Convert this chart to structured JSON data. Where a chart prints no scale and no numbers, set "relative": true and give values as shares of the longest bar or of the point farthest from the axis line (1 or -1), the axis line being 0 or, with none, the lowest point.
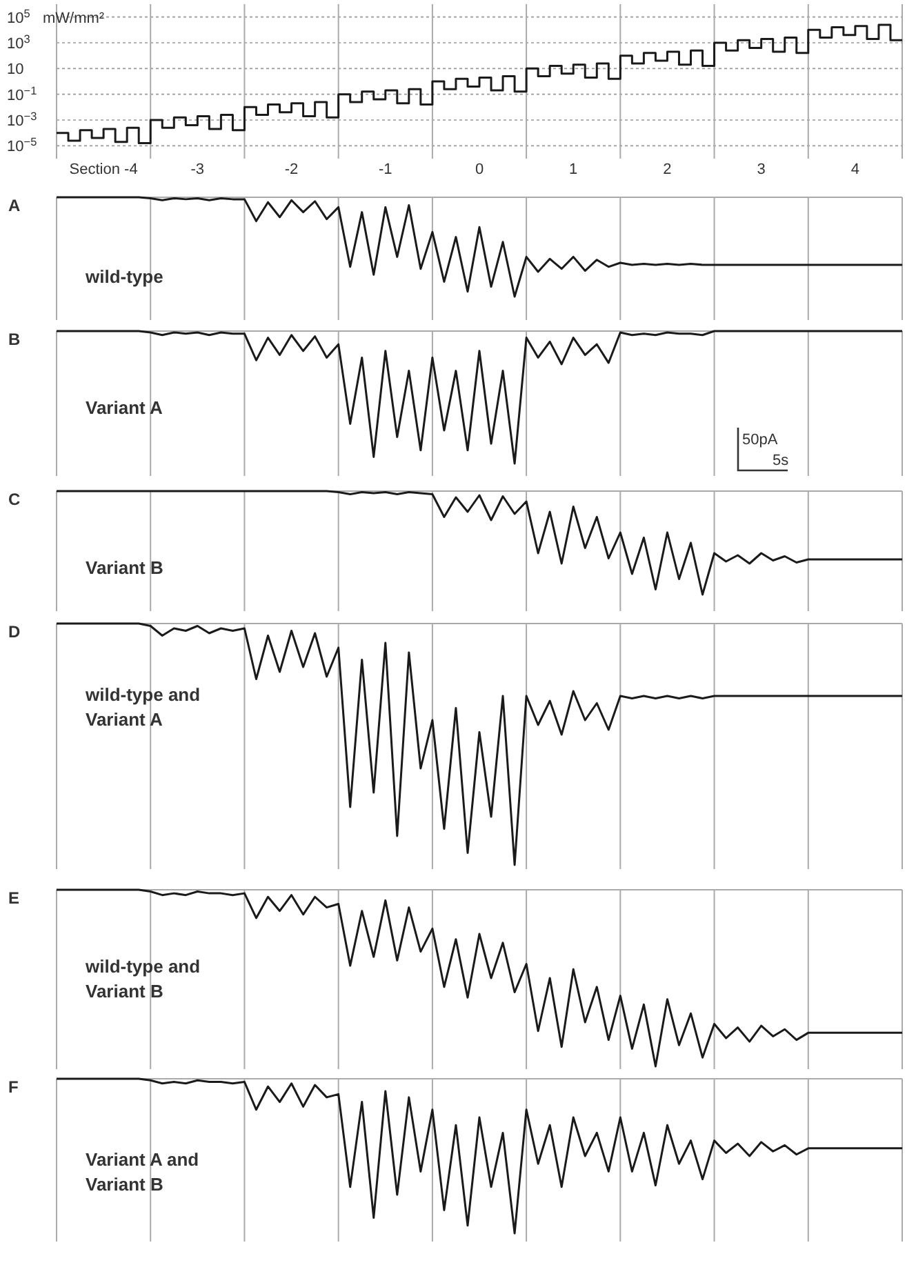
{
  "chart_data": [
    {
      "type": "step",
      "ylabel": "mW/mm²",
      "log": true,
      "grid": true,
      "xlim": [
        -4.5,
        4.5
      ],
      "ylim": [
        1e-06,
        1000000.0
      ],
      "yticks": [
        {
          "value": 1e-05,
          "label": "10$^{−5}$"
        },
        {
          "value": 0.001,
          "label": "10$^{−3}$"
        },
        {
          "value": 0.1,
          "label": "10$^{−1}$"
        },
        10,
        {
          "value": 1000,
          "label": "10$^{3}$"
        },
        {
          "value": 100000,
          "label": "10$^{5}$"
        }
      ],
      "xticks": [
        {
          "value": -4.5,
          "label": null
        },
        {
          "value": -4,
          "label": "Section -4"
        },
        {
          "value": -3.5,
          "label": null
        },
        -3,
        {
          "value": -2.5,
          "label": null
        },
        -2,
        {
          "value": -1.5,
          "label": null
        },
        -1,
        {
          "value": -0.5,
          "label": null
        },
        0,
        {
          "value": 0.5,
          "label": null
        },
        1,
        {
          "value": 1.5,
          "label": null
        },
        2,
        {
          "value": 2.5,
          "label": null
        },
        3,
        {
          "value": 3.5,
          "label": null
        },
        4,
        {
          "value": 4.5,
          "label": null
        }
      ],
      "x": [
        -4.5,
        -4.375,
        -4.25,
        -4.125,
        -4,
        -3.875,
        -3.75,
        -3.625,
        -3.5,
        -3.375,
        -3.25,
        -3.125,
        -3,
        -2.875,
        -2.75,
        -2.625,
        -2.5,
        -2.375,
        -2.25,
        -2.125,
        -2,
        -1.875,
        -1.75,
        -1.625,
        -1.5,
        -1.375,
        -1.25,
        -1.125,
        -1,
        -0.875,
        -0.75,
        -0.625,
        -0.5,
        -0.375,
        -0.25,
        -0.125,
        0,
        0.125,
        0.25,
        0.375,
        0.5,
        0.625,
        0.75,
        0.875,
        1,
        1.125,
        1.25,
        1.375,
        1.5,
        1.625,
        1.75,
        1.875,
        2,
        2.125,
        2.25,
        2.375,
        2.5,
        2.625,
        2.75,
        2.875,
        3,
        3.125,
        3.25,
        3.375,
        3.5,
        3.625,
        3.75,
        3.875,
        4,
        4.125,
        4.25,
        4.375,
        4.5
      ],
      "series": [
        {
          "color": "#1a1a1a",
          "values": [
            0.0001,
            2.5e-05,
            0.00016,
            4e-05,
            0.0002,
            2e-05,
            0.00025,
            1.6e-05,
            0.001,
            0.00025,
            0.0016,
            0.0004,
            0.002,
            0.0002,
            0.0025,
            0.00016,
            0.01,
            0.0025,
            0.016,
            0.004,
            0.02,
            0.002,
            0.025,
            0.0016,
            0.1,
            0.025,
            0.16,
            0.04,
            0.2,
            0.02,
            0.25,
            0.016,
            1,
            0.25,
            1.6,
            0.4,
            2,
            0.2,
            2.5,
            0.16,
            10,
            2.5,
            16,
            4,
            20,
            2,
            25,
            1.6,
            100,
            25,
            160,
            40,
            200,
            20,
            250,
            16,
            1000,
            250,
            1600,
            400,
            2000,
            200,
            2500,
            160,
            10000,
            2500,
            16000,
            4000,
            20000,
            2000,
            25000,
            1600,
            1600
          ]
        }
      ]
    },
    {
      "type": "line",
      "title": "A",
      "subtitle": "wild-type",
      "relative": true,
      "grid": "x",
      "categories": [
        null,
        null,
        null,
        null,
        null,
        null,
        null,
        null,
        null,
        null,
        null,
        null,
        null,
        null,
        null,
        null,
        null,
        null,
        null,
        null,
        null,
        null,
        null,
        null,
        null,
        null,
        null,
        null,
        null,
        null,
        null,
        null,
        null,
        null,
        null,
        null,
        null,
        null,
        null,
        null,
        null,
        null,
        null,
        null,
        null,
        null,
        null,
        null,
        null,
        null,
        null,
        null,
        null,
        null,
        null,
        null,
        null,
        null,
        null,
        null,
        null,
        null,
        null,
        null,
        null,
        null,
        null,
        null,
        null,
        null,
        null,
        null,
        null
      ],
      "series": [
        {
          "color": "#1a1a1a",
          "values": [
            0,
            0,
            0,
            0,
            0,
            0,
            0,
            0,
            -0.01,
            -0.03,
            -0.01,
            -0.02,
            -0.01,
            -0.03,
            -0.01,
            -0.02,
            -0.02,
            -0.24,
            -0.05,
            -0.2,
            -0.03,
            -0.15,
            -0.04,
            -0.22,
            -0.1,
            -0.7,
            -0.15,
            -0.78,
            -0.1,
            -0.6,
            -0.08,
            -0.72,
            -0.35,
            -0.85,
            -0.4,
            -0.95,
            -0.3,
            -0.9,
            -0.45,
            -1,
            -0.6,
            -0.75,
            -0.62,
            -0.72,
            -0.6,
            -0.74,
            -0.63,
            -0.7,
            -0.66,
            -0.68,
            -0.67,
            -0.68,
            -0.67,
            -0.68,
            -0.67,
            -0.68,
            -0.68,
            -0.68,
            -0.68,
            -0.68,
            -0.68,
            -0.68,
            -0.68,
            -0.68,
            -0.68,
            -0.68,
            -0.68,
            -0.68,
            -0.68,
            -0.68,
            -0.68,
            -0.68,
            -0.68
          ]
        }
      ]
    },
    {
      "type": "line",
      "title": "B",
      "subtitle": "Variant A",
      "annotations": [
        "50pA",
        "5s"
      ],
      "relative": true,
      "grid": "x",
      "categories": [
        null,
        null,
        null,
        null,
        null,
        null,
        null,
        null,
        null,
        null,
        null,
        null,
        null,
        null,
        null,
        null,
        null,
        null,
        null,
        null,
        null,
        null,
        null,
        null,
        null,
        null,
        null,
        null,
        null,
        null,
        null,
        null,
        null,
        null,
        null,
        null,
        null,
        null,
        null,
        null,
        null,
        null,
        null,
        null,
        null,
        null,
        null,
        null,
        null,
        null,
        null,
        null,
        null,
        null,
        null,
        null,
        null,
        null,
        null,
        null,
        null,
        null,
        null,
        null,
        null,
        null,
        null,
        null,
        null,
        null,
        null,
        null,
        null
      ],
      "series": [
        {
          "color": "#1a1a1a",
          "values": [
            0,
            0,
            0,
            0,
            0,
            0,
            0,
            0,
            -0.01,
            -0.03,
            -0.01,
            -0.02,
            -0.01,
            -0.03,
            -0.01,
            -0.02,
            -0.02,
            -0.22,
            -0.05,
            -0.18,
            -0.03,
            -0.15,
            -0.04,
            -0.2,
            -0.1,
            -0.7,
            -0.2,
            -0.95,
            -0.15,
            -0.8,
            -0.3,
            -0.9,
            -0.2,
            -0.75,
            -0.3,
            -0.9,
            -0.15,
            -0.85,
            -0.3,
            -1,
            -0.05,
            -0.2,
            -0.08,
            -0.25,
            -0.05,
            -0.18,
            -0.1,
            -0.24,
            -0.01,
            -0.03,
            -0.02,
            -0.03,
            -0.01,
            -0.02,
            -0.02,
            -0.03,
            0,
            0,
            0,
            0,
            0,
            0,
            0,
            0,
            0,
            0,
            0,
            0,
            0,
            0,
            0,
            0,
            0
          ]
        }
      ]
    },
    {
      "type": "line",
      "title": "C",
      "subtitle": "Variant B",
      "relative": true,
      "grid": "x",
      "categories": [
        null,
        null,
        null,
        null,
        null,
        null,
        null,
        null,
        null,
        null,
        null,
        null,
        null,
        null,
        null,
        null,
        null,
        null,
        null,
        null,
        null,
        null,
        null,
        null,
        null,
        null,
        null,
        null,
        null,
        null,
        null,
        null,
        null,
        null,
        null,
        null,
        null,
        null,
        null,
        null,
        null,
        null,
        null,
        null,
        null,
        null,
        null,
        null,
        null,
        null,
        null,
        null,
        null,
        null,
        null,
        null,
        null,
        null,
        null,
        null,
        null,
        null,
        null,
        null,
        null,
        null,
        null,
        null,
        null,
        null,
        null,
        null,
        null
      ],
      "series": [
        {
          "color": "#1a1a1a",
          "values": [
            0,
            0,
            0,
            0,
            0,
            0,
            0,
            0,
            0,
            0,
            0,
            0,
            0,
            0,
            0,
            0,
            0,
            0,
            0,
            0,
            0,
            0,
            0,
            0,
            -0.01,
            -0.03,
            -0.01,
            -0.02,
            -0.01,
            -0.03,
            -0.01,
            -0.02,
            -0.03,
            -0.25,
            -0.06,
            -0.2,
            -0.04,
            -0.28,
            -0.05,
            -0.22,
            -0.1,
            -0.6,
            -0.2,
            -0.7,
            -0.15,
            -0.55,
            -0.25,
            -0.65,
            -0.4,
            -0.8,
            -0.45,
            -0.95,
            -0.4,
            -0.85,
            -0.5,
            -1,
            -0.6,
            -0.68,
            -0.62,
            -0.7,
            -0.6,
            -0.67,
            -0.63,
            -0.69,
            -0.66,
            -0.66,
            -0.66,
            -0.66,
            -0.66,
            -0.66,
            -0.66,
            -0.66,
            -0.66
          ]
        }
      ]
    },
    {
      "type": "line",
      "title": "D",
      "subtitle": "wild-type and Variant A",
      "relative": true,
      "grid": "x",
      "categories": [
        null,
        null,
        null,
        null,
        null,
        null,
        null,
        null,
        null,
        null,
        null,
        null,
        null,
        null,
        null,
        null,
        null,
        null,
        null,
        null,
        null,
        null,
        null,
        null,
        null,
        null,
        null,
        null,
        null,
        null,
        null,
        null,
        null,
        null,
        null,
        null,
        null,
        null,
        null,
        null,
        null,
        null,
        null,
        null,
        null,
        null,
        null,
        null,
        null,
        null,
        null,
        null,
        null,
        null,
        null,
        null,
        null,
        null,
        null,
        null,
        null,
        null,
        null,
        null,
        null,
        null,
        null,
        null,
        null,
        null,
        null,
        null,
        null
      ],
      "series": [
        {
          "color": "#1a1a1a",
          "values": [
            0,
            0,
            0,
            0,
            0,
            0,
            0,
            0,
            -0.01,
            -0.05,
            -0.02,
            -0.03,
            -0.01,
            -0.04,
            -0.02,
            -0.03,
            -0.02,
            -0.23,
            -0.05,
            -0.2,
            -0.03,
            -0.18,
            -0.04,
            -0.22,
            -0.1,
            -0.76,
            -0.15,
            -0.7,
            -0.08,
            -0.88,
            -0.12,
            -0.6,
            -0.4,
            -0.85,
            -0.35,
            -0.95,
            -0.45,
            -0.8,
            -0.3,
            -1,
            -0.3,
            -0.42,
            -0.32,
            -0.46,
            -0.28,
            -0.4,
            -0.33,
            -0.44,
            -0.3,
            -0.31,
            -0.3,
            -0.31,
            -0.3,
            -0.31,
            -0.3,
            -0.31,
            -0.3,
            -0.3,
            -0.3,
            -0.3,
            -0.3,
            -0.3,
            -0.3,
            -0.3,
            -0.3,
            -0.3,
            -0.3,
            -0.3,
            -0.3,
            -0.3,
            -0.3,
            -0.3,
            -0.3
          ]
        }
      ]
    },
    {
      "type": "line",
      "title": "E",
      "subtitle": "wild-type and Variant B",
      "relative": true,
      "grid": "x",
      "categories": [
        null,
        null,
        null,
        null,
        null,
        null,
        null,
        null,
        null,
        null,
        null,
        null,
        null,
        null,
        null,
        null,
        null,
        null,
        null,
        null,
        null,
        null,
        null,
        null,
        null,
        null,
        null,
        null,
        null,
        null,
        null,
        null,
        null,
        null,
        null,
        null,
        null,
        null,
        null,
        null,
        null,
        null,
        null,
        null,
        null,
        null,
        null,
        null,
        null,
        null,
        null,
        null,
        null,
        null,
        null,
        null,
        null,
        null,
        null,
        null,
        null,
        null,
        null,
        null,
        null,
        null,
        null,
        null,
        null,
        null,
        null,
        null,
        null
      ],
      "series": [
        {
          "color": "#1a1a1a",
          "values": [
            0,
            0,
            0,
            0,
            0,
            0,
            0,
            0,
            -0.01,
            -0.03,
            -0.02,
            -0.03,
            -0.01,
            -0.02,
            -0.02,
            -0.03,
            -0.02,
            -0.16,
            -0.04,
            -0.12,
            -0.03,
            -0.14,
            -0.04,
            -0.1,
            -0.08,
            -0.43,
            -0.12,
            -0.38,
            -0.06,
            -0.4,
            -0.1,
            -0.35,
            -0.22,
            -0.55,
            -0.28,
            -0.61,
            -0.25,
            -0.5,
            -0.3,
            -0.58,
            -0.42,
            -0.8,
            -0.5,
            -0.89,
            -0.45,
            -0.75,
            -0.55,
            -0.85,
            -0.6,
            -0.9,
            -0.65,
            -1,
            -0.62,
            -0.88,
            -0.7,
            -0.95,
            -0.76,
            -0.84,
            -0.78,
            -0.86,
            -0.77,
            -0.83,
            -0.79,
            -0.85,
            -0.81,
            -0.81,
            -0.81,
            -0.81,
            -0.81,
            -0.81,
            -0.81,
            -0.81,
            -0.81
          ]
        }
      ]
    },
    {
      "type": "line",
      "title": "F",
      "subtitle": "Variant A and Variant B",
      "relative": true,
      "grid": "x",
      "categories": [
        null,
        null,
        null,
        null,
        null,
        null,
        null,
        null,
        null,
        null,
        null,
        null,
        null,
        null,
        null,
        null,
        null,
        null,
        null,
        null,
        null,
        null,
        null,
        null,
        null,
        null,
        null,
        null,
        null,
        null,
        null,
        null,
        null,
        null,
        null,
        null,
        null,
        null,
        null,
        null,
        null,
        null,
        null,
        null,
        null,
        null,
        null,
        null,
        null,
        null,
        null,
        null,
        null,
        null,
        null,
        null,
        null,
        null,
        null,
        null,
        null,
        null,
        null,
        null,
        null,
        null,
        null,
        null,
        null,
        null,
        null,
        null,
        null
      ],
      "series": [
        {
          "color": "#1a1a1a",
          "values": [
            0,
            0,
            0,
            0,
            0,
            0,
            0,
            0,
            -0.01,
            -0.03,
            -0.02,
            -0.03,
            -0.01,
            -0.02,
            -0.02,
            -0.03,
            -0.02,
            -0.2,
            -0.05,
            -0.15,
            -0.03,
            -0.18,
            -0.04,
            -0.12,
            -0.1,
            -0.7,
            -0.15,
            -0.9,
            -0.08,
            -0.75,
            -0.12,
            -0.6,
            -0.2,
            -0.85,
            -0.3,
            -0.95,
            -0.25,
            -0.7,
            -0.35,
            -1,
            -0.2,
            -0.55,
            -0.3,
            -0.7,
            -0.25,
            -0.5,
            -0.35,
            -0.6,
            -0.25,
            -0.6,
            -0.35,
            -0.69,
            -0.3,
            -0.55,
            -0.4,
            -0.65,
            -0.4,
            -0.48,
            -0.42,
            -0.5,
            -0.41,
            -0.47,
            -0.43,
            -0.49,
            -0.45,
            -0.45,
            -0.45,
            -0.45,
            -0.45,
            -0.45,
            -0.45,
            -0.45,
            -0.45
          ]
        }
      ]
    }
  ]
}
